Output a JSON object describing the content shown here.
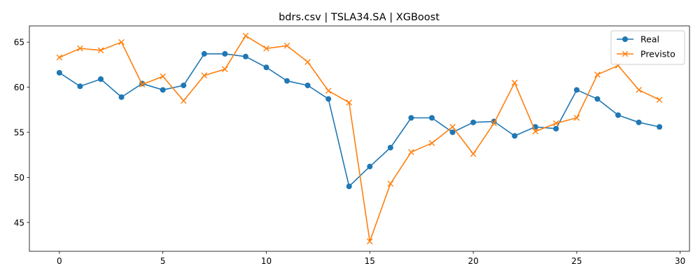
{
  "chart_data": {
    "type": "line",
    "title": "bdrs.csv | TSLA34.SA | XGBoost",
    "xlabel": "",
    "ylabel": "",
    "x": [
      0,
      1,
      2,
      3,
      4,
      5,
      6,
      7,
      8,
      9,
      10,
      11,
      12,
      13,
      14,
      15,
      16,
      17,
      18,
      19,
      20,
      21,
      22,
      23,
      24,
      25,
      26,
      27,
      28,
      29
    ],
    "xlim": [
      -1.45,
      30.45
    ],
    "ylim": [
      41.8,
      66.8
    ],
    "xticks": [
      0,
      5,
      10,
      15,
      20,
      25,
      30
    ],
    "yticks": [
      45,
      50,
      55,
      60,
      65
    ],
    "grid": false,
    "legend_position": "top-right",
    "series": [
      {
        "name": "Real",
        "color": "#1f77b4",
        "marker": "circle",
        "values": [
          61.6,
          60.1,
          60.9,
          58.9,
          60.4,
          59.7,
          60.2,
          63.7,
          63.7,
          63.4,
          62.2,
          60.7,
          60.2,
          58.7,
          49.0,
          51.2,
          53.3,
          56.6,
          56.6,
          55.0,
          56.1,
          56.2,
          54.6,
          55.6,
          55.4,
          59.7,
          58.7,
          56.9,
          56.1,
          55.6
        ]
      },
      {
        "name": "Previsto",
        "color": "#ff7f0e",
        "marker": "x",
        "values": [
          63.3,
          64.3,
          64.1,
          65.0,
          60.3,
          61.2,
          58.5,
          61.3,
          62.0,
          65.7,
          64.3,
          64.6,
          62.8,
          59.6,
          58.3,
          42.9,
          49.3,
          52.8,
          53.8,
          55.6,
          52.6,
          56.0,
          60.5,
          55.1,
          56.0,
          56.6,
          61.4,
          62.4,
          59.7,
          58.6
        ]
      }
    ]
  }
}
